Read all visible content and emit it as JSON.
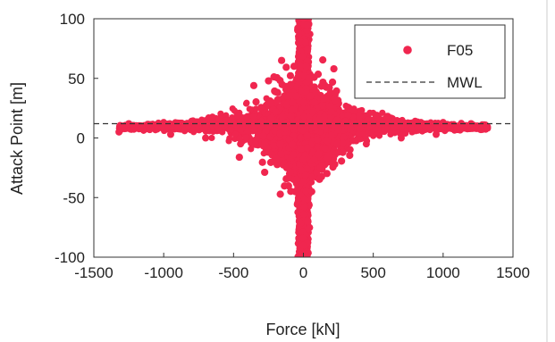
{
  "chart_data": {
    "type": "scatter",
    "title": "",
    "xlabel": "Force [kN]",
    "ylabel": "Attack Point [m]",
    "xlim": [
      -1500,
      1500
    ],
    "ylim": [
      -100,
      100
    ],
    "xticks": [
      -1500,
      -1000,
      -500,
      0,
      500,
      1000,
      1500
    ],
    "yticks": [
      -100,
      -50,
      0,
      50,
      100
    ],
    "xtick_labels": [
      "-1500",
      "-1000",
      "-500",
      "0",
      "500",
      "1000",
      "1500"
    ],
    "ytick_labels": [
      "-100",
      "-50",
      "0",
      "50",
      "100"
    ],
    "grid": false,
    "legend_position": "top-right",
    "series": [
      {
        "name": "F05",
        "kind": "scatter",
        "color": "#f0264f",
        "description_points": [
          [
            -1320,
            5
          ],
          [
            -1100,
            7
          ],
          [
            -900,
            8
          ],
          [
            -700,
            9
          ],
          [
            -500,
            12
          ],
          [
            -300,
            14
          ],
          [
            -150,
            18
          ],
          [
            -50,
            35
          ],
          [
            -20,
            60
          ],
          [
            0,
            100
          ],
          [
            20,
            60
          ],
          [
            50,
            35
          ],
          [
            150,
            18
          ],
          [
            300,
            14
          ],
          [
            500,
            12
          ],
          [
            700,
            10
          ],
          [
            900,
            9
          ],
          [
            1100,
            8
          ],
          [
            1270,
            7
          ],
          [
            -1250,
            12
          ],
          [
            -1000,
            13
          ],
          [
            -800,
            14
          ],
          [
            -600,
            16
          ],
          [
            -400,
            18
          ],
          [
            -200,
            22
          ],
          [
            -80,
            30
          ],
          [
            -40,
            50
          ],
          [
            -15,
            80
          ],
          [
            15,
            80
          ],
          [
            40,
            50
          ],
          [
            80,
            30
          ],
          [
            200,
            22
          ],
          [
            400,
            18
          ],
          [
            600,
            16
          ],
          [
            800,
            14
          ],
          [
            1000,
            13
          ],
          [
            1200,
            12
          ],
          [
            -20,
            -100
          ],
          [
            0,
            -90
          ],
          [
            20,
            -100
          ],
          [
            -30,
            -70
          ],
          [
            30,
            -70
          ],
          [
            -60,
            -45
          ],
          [
            60,
            -45
          ],
          [
            -120,
            -25
          ],
          [
            120,
            -25
          ],
          [
            -250,
            -12
          ],
          [
            250,
            -12
          ],
          [
            -450,
            -5
          ],
          [
            450,
            -5
          ],
          [
            -700,
            0
          ],
          [
            700,
            0
          ],
          [
            -950,
            3
          ],
          [
            950,
            3
          ]
        ]
      },
      {
        "name": "MWL",
        "kind": "line",
        "color": "#333333",
        "y": 12
      }
    ]
  }
}
